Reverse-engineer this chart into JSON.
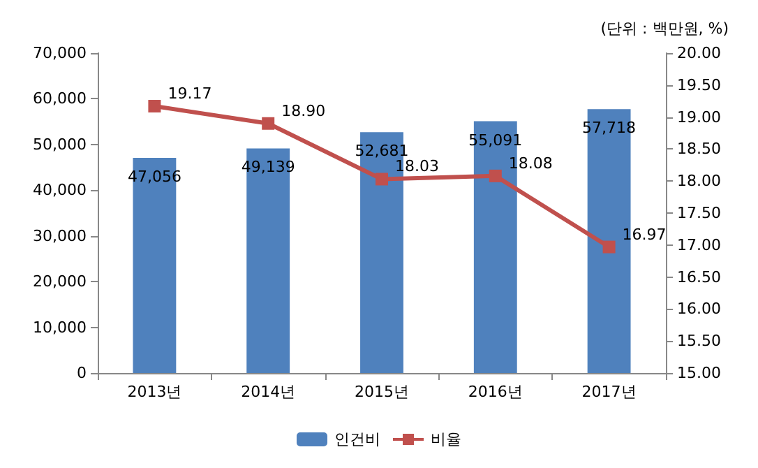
{
  "chart_data": {
    "type": "bar",
    "categories": [
      "2013년",
      "2014년",
      "2015년",
      "2016년",
      "2017년"
    ],
    "series": [
      {
        "name": "인건비",
        "color": "#4f81bd",
        "values": [
          47056,
          49139,
          52681,
          55091,
          57718
        ],
        "value_labels": [
          "47,056",
          "49,139",
          "52,681",
          "55,091",
          "57,718"
        ]
      },
      {
        "name": "비율",
        "type": "line",
        "axis": "y2",
        "color": "#c0504d",
        "values": [
          19.17,
          18.9,
          18.03,
          18.08,
          16.97
        ],
        "value_labels": [
          "19.17",
          "18.90",
          "18.03",
          "18.08",
          "16.97"
        ]
      }
    ],
    "ylim": [
      0,
      70000
    ],
    "yticks": [
      0,
      {
        "value": 10000,
        "label": "10,000"
      },
      {
        "value": 20000,
        "label": "20,000"
      },
      {
        "value": 30000,
        "label": "30,000"
      },
      {
        "value": 40000,
        "label": "40,000"
      },
      {
        "value": 50000,
        "label": "50,000"
      },
      {
        "value": 60000,
        "label": "60,000"
      },
      {
        "value": 70000,
        "label": "70,000"
      }
    ],
    "y2lim": [
      15,
      20
    ],
    "y2ticks": [
      {
        "value": 15,
        "label": "15.00"
      },
      {
        "value": 15.5,
        "label": "15.50"
      },
      {
        "value": 16,
        "label": "16.00"
      },
      {
        "value": 16.5,
        "label": "16.50"
      },
      {
        "value": 17,
        "label": "17.00"
      },
      {
        "value": 17.5,
        "label": "17.50"
      },
      {
        "value": 18,
        "label": "18.00"
      },
      {
        "value": 18.5,
        "label": "18.50"
      },
      {
        "value": 19,
        "label": "19.00"
      },
      {
        "value": 19.5,
        "label": "19.50"
      },
      {
        "value": 20,
        "label": "20.00"
      }
    ],
    "annotations": [
      "(단위 : 백만원, %)"
    ],
    "legend": "bottom",
    "marker": "square",
    "line_style": "solid",
    "grid": false
  }
}
